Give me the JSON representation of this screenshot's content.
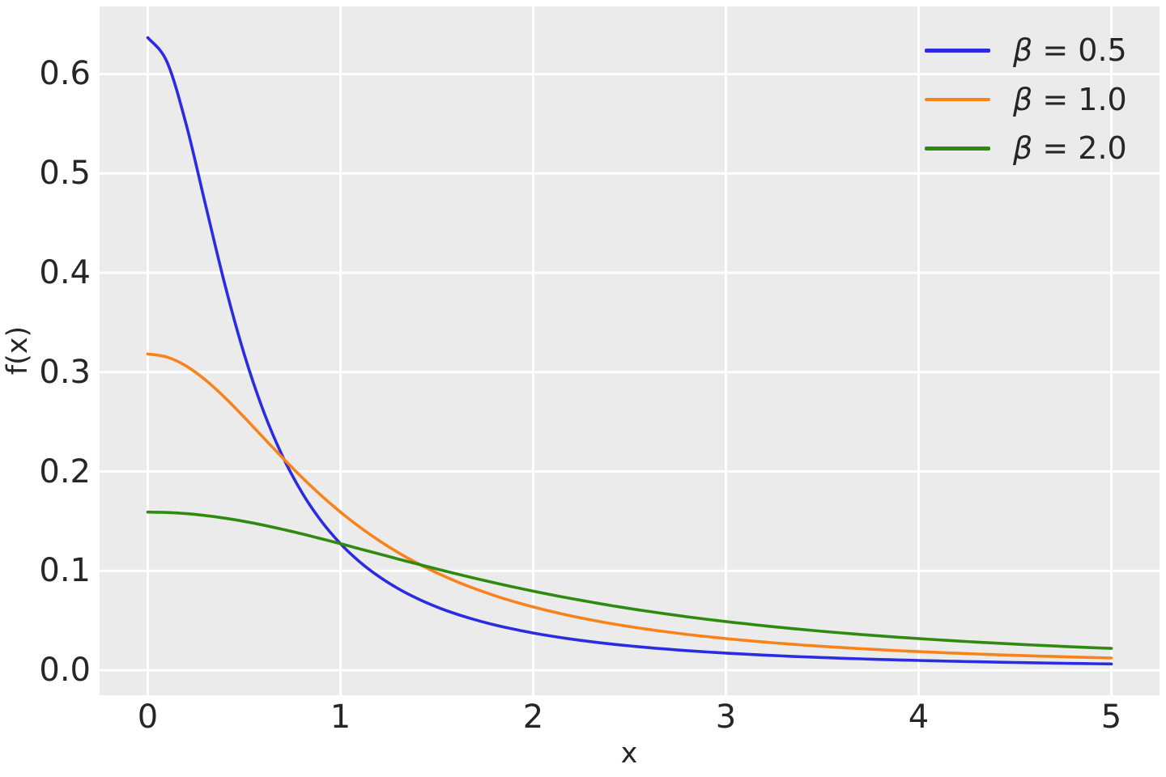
{
  "figure": {
    "background": "#ffffff",
    "plot_background": "#ebebeb",
    "grid_color": "#ffffff",
    "text_color": "#262626"
  },
  "legend": {
    "position": "upper right",
    "items": [
      {
        "symbol": "β",
        "rest": " = 0.5"
      },
      {
        "symbol": "β",
        "rest": " = 1.0"
      },
      {
        "symbol": "β",
        "rest": " = 2.0"
      }
    ]
  },
  "chart_data": {
    "type": "line",
    "title": "",
    "xlabel": "x",
    "ylabel": "f(x)",
    "xlim": [
      -0.25,
      5.25
    ],
    "ylim": [
      -0.0252,
      0.668
    ],
    "grid": true,
    "legend_position": "upper right",
    "x_ticks": [
      0,
      1,
      2,
      3,
      4,
      5
    ],
    "x_tick_labels": [
      "0",
      "1",
      "2",
      "3",
      "4",
      "5"
    ],
    "y_ticks": [
      0.0,
      0.1,
      0.2,
      0.3,
      0.4,
      0.5,
      0.6
    ],
    "y_tick_labels": [
      "0.0",
      "0.1",
      "0.2",
      "0.3",
      "0.4",
      "0.5",
      "0.6"
    ],
    "x": [
      0.0,
      0.1,
      0.2,
      0.3,
      0.4,
      0.5,
      0.6,
      0.7,
      0.8,
      0.9,
      1.0,
      1.1,
      1.2,
      1.3,
      1.4,
      1.5,
      1.6,
      1.7,
      1.8,
      1.9,
      2.0,
      2.1,
      2.2,
      2.3,
      2.4,
      2.5,
      2.6,
      2.7,
      2.8,
      2.9,
      3.0,
      3.1,
      3.2,
      3.3,
      3.4,
      3.5,
      3.6,
      3.7,
      3.8,
      3.9,
      4.0,
      4.1,
      4.2,
      4.3,
      4.4,
      4.5,
      4.6,
      4.7,
      4.8,
      4.9,
      5.0
    ],
    "series": [
      {
        "name": "β = 0.5",
        "color": "#2b2be1",
        "values": [
          0.63662,
          0.61214,
          0.54881,
          0.4681,
          0.38818,
          0.31831,
          0.26091,
          0.21507,
          0.17883,
          0.15015,
          0.12732,
          0.10901,
          0.09418,
          0.08204,
          0.07202,
          0.06366,
          0.05664,
          0.05069,
          0.0456,
          0.04123,
          0.03745,
          0.03415,
          0.03127,
          0.02873,
          0.02648,
          0.02449,
          0.0227,
          0.02111,
          0.01967,
          0.01838,
          0.01721,
          0.01614,
          0.01517,
          0.01429,
          0.01348,
          0.01273,
          0.01205,
          0.01142,
          0.01083,
          0.01029,
          0.00979,
          0.00933,
          0.0089,
          0.00849,
          0.00812,
          0.00776,
          0.00743,
          0.00712,
          0.00683,
          0.00656,
          0.0063
        ]
      },
      {
        "name": "β = 1.0",
        "color": "#f9821b",
        "values": [
          0.31831,
          0.31516,
          0.30607,
          0.29203,
          0.2744,
          0.25465,
          0.23405,
          0.21363,
          0.19409,
          0.17586,
          0.15915,
          0.14403,
          0.13046,
          0.11833,
          0.10754,
          0.09794,
          0.08941,
          0.08183,
          0.07507,
          0.06905,
          0.06366,
          0.05884,
          0.05451,
          0.05061,
          0.04709,
          0.04391,
          0.04102,
          0.0384,
          0.03601,
          0.03383,
          0.03183,
          0.03,
          0.02832,
          0.02677,
          0.02534,
          0.02402,
          0.0228,
          0.02167,
          0.02062,
          0.01964,
          0.01872,
          0.01787,
          0.01708,
          0.01633,
          0.01563,
          0.01498,
          0.01436,
          0.01379,
          0.01324,
          0.01273,
          0.01224
        ]
      },
      {
        "name": "β = 2.0",
        "color": "#2f8b10",
        "values": [
          0.15915,
          0.15876,
          0.15758,
          0.15565,
          0.15303,
          0.14979,
          0.14601,
          0.14179,
          0.1372,
          0.13235,
          0.12732,
          0.12219,
          0.11703,
          0.11188,
          0.10681,
          0.10186,
          0.09705,
          0.0924,
          0.08793,
          0.08366,
          0.07958,
          0.0757,
          0.07202,
          0.06853,
          0.06523,
          0.06211,
          0.05916,
          0.05639,
          0.05377,
          0.0513,
          0.04897,
          0.04678,
          0.04471,
          0.04275,
          0.04091,
          0.03918,
          0.03754,
          0.03599,
          0.03452,
          0.03314,
          0.03183,
          0.03059,
          0.02942,
          0.02831,
          0.02725,
          0.02625,
          0.0253,
          0.0244,
          0.02354,
          0.02273,
          0.02195
        ]
      }
    ]
  }
}
